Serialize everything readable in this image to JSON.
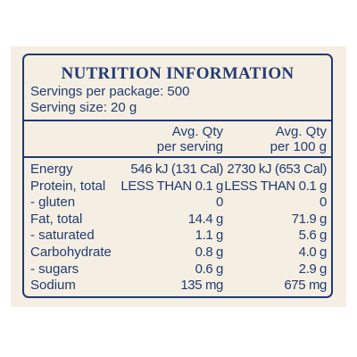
{
  "title": "NUTRITION INFORMATION",
  "servings_per_package": "Servings per package: 500",
  "serving_size": "Serving size: 20 g",
  "columns": [
    {
      "line1": "Avg. Qty",
      "line2": "per serving"
    },
    {
      "line1": "Avg. Qty",
      "line2": "per 100 g"
    }
  ],
  "rows": [
    {
      "name": "Energy",
      "per_serving": "546 kJ (131 Cal)",
      "per_100g": "2730 kJ (653 Cal)"
    },
    {
      "name": "Protein, total",
      "per_serving": "LESS THAN 0.1 g",
      "per_100g": "LESS THAN 0.1 g"
    },
    {
      "name": "- gluten",
      "per_serving": "0",
      "per_100g": "0"
    },
    {
      "name": "Fat, total",
      "per_serving": "14.4 g",
      "per_100g": "71.9 g"
    },
    {
      "name": "- saturated",
      "per_serving": "1.1 g",
      "per_100g": "5.6 g"
    },
    {
      "name": "Carbohydrate",
      "per_serving": "0.8 g",
      "per_100g": "4.0 g"
    },
    {
      "name": "- sugars",
      "per_serving": "0.6 g",
      "per_100g": "2.9 g"
    },
    {
      "name": "Sodium",
      "per_serving": "135 mg",
      "per_100g": "675 mg"
    }
  ],
  "colors": {
    "ink": "#233a73",
    "panel": "#f4efe2",
    "background": "#ffffff"
  }
}
